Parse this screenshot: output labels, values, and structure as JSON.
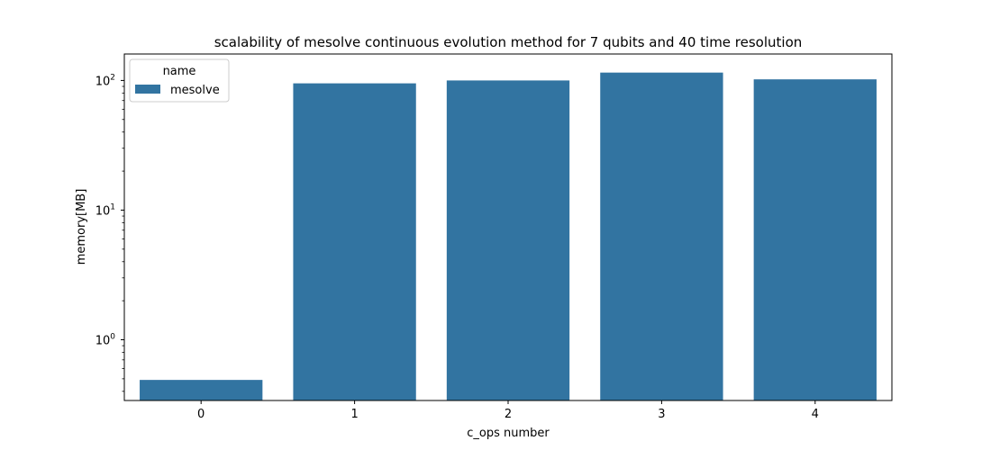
{
  "chart_data": {
    "type": "bar",
    "title": "scalability of mesolve continuous evolution method for 7 qubits and 40 time resolution",
    "xlabel": "c_ops number",
    "ylabel": "memory[MB]",
    "categories": [
      "0",
      "1",
      "2",
      "3",
      "4"
    ],
    "series": [
      {
        "name": "mesolve",
        "values": [
          0.49,
          95,
          100,
          115,
          102
        ]
      }
    ],
    "yscale": "log",
    "ylim": [
      0.34,
      160
    ],
    "y_ticks": [
      {
        "value": 1,
        "base": "10",
        "exp": "0"
      },
      {
        "value": 10,
        "base": "10",
        "exp": "1"
      },
      {
        "value": 100,
        "base": "10",
        "exp": "2"
      }
    ],
    "legend": {
      "title": "name",
      "placement": "top-left"
    },
    "grid": false,
    "colors": {
      "bar": "#3274a1"
    }
  }
}
